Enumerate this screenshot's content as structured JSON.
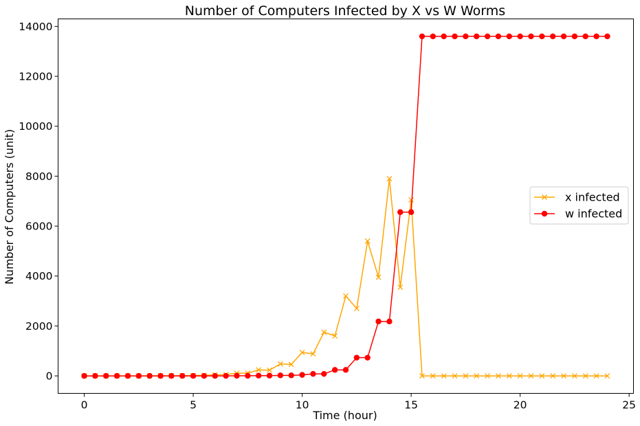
{
  "chart_data": {
    "type": "line",
    "title": "Number of Computers Infected by X vs W Worms",
    "xlabel": "Time (hour)",
    "ylabel": "Number of Computers (unit)",
    "xlim": [
      -1.2,
      25.2
    ],
    "ylim": [
      -700,
      14300
    ],
    "xticks": [
      0,
      5,
      10,
      15,
      20,
      25
    ],
    "yticks": [
      0,
      2000,
      4000,
      6000,
      8000,
      10000,
      12000,
      14000
    ],
    "grid": false,
    "legend_position": "center-right",
    "x": [
      0,
      0.5,
      1,
      1.5,
      2,
      2.5,
      3,
      3.5,
      4,
      4.5,
      5,
      5.5,
      6,
      6.5,
      7,
      7.5,
      8,
      8.5,
      9,
      9.5,
      10,
      10.5,
      11,
      11.5,
      12,
      12.5,
      13,
      13.5,
      14,
      14.5,
      15,
      15.5,
      16,
      16.5,
      17,
      17.5,
      18,
      18.5,
      19,
      19.5,
      20,
      20.5,
      21,
      21.5,
      22,
      22.5,
      23,
      23.5,
      24
    ],
    "series": [
      {
        "name": "x infected",
        "color": "#ffa500",
        "marker": "x",
        "values": [
          0,
          0,
          0,
          0,
          0,
          0,
          0,
          5,
          5,
          10,
          15,
          25,
          40,
          55,
          110,
          110,
          240,
          230,
          480,
          460,
          940,
          880,
          1750,
          1600,
          3200,
          2700,
          5400,
          3950,
          7900,
          3550,
          7050,
          0,
          0,
          0,
          0,
          0,
          0,
          0,
          0,
          0,
          0,
          0,
          0,
          0,
          0,
          0,
          0,
          0,
          0
        ]
      },
      {
        "name": "w infected",
        "color": "#ff0000",
        "marker": "o",
        "values": [
          0,
          0,
          0,
          0,
          0,
          0,
          0,
          0,
          0,
          0,
          0,
          0,
          0,
          0,
          5,
          5,
          10,
          10,
          20,
          20,
          40,
          80,
          80,
          240,
          240,
          730,
          730,
          2180,
          2180,
          6560,
          6560,
          13600,
          13600,
          13600,
          13600,
          13600,
          13600,
          13600,
          13600,
          13600,
          13600,
          13600,
          13600,
          13600,
          13600,
          13600,
          13600,
          13600,
          13600
        ]
      }
    ]
  }
}
